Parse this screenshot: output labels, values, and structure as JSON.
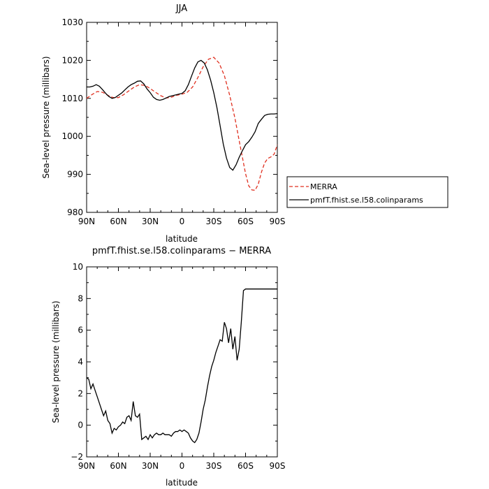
{
  "chart_data": [
    {
      "type": "line",
      "title": "JJA",
      "xlabel": "latitude",
      "ylabel": "Sea-level pressure (millibars)",
      "xlim": [
        90,
        -90
      ],
      "ylim": [
        980,
        1030
      ],
      "xticks": [
        {
          "value": 90,
          "label": "90N"
        },
        {
          "value": 60,
          "label": "60N"
        },
        {
          "value": 30,
          "label": "30N"
        },
        {
          "value": 0,
          "label": "0"
        },
        {
          "value": -30,
          "label": "30S"
        },
        {
          "value": -60,
          "label": "60S"
        },
        {
          "value": -90,
          "label": "90S"
        }
      ],
      "yticks": [
        980,
        990,
        1000,
        1010,
        1020,
        1030
      ],
      "grid": false,
      "legend_placement": "right",
      "series": [
        {
          "name": "MERRA",
          "color": "#e03020",
          "dash": true,
          "x": [
            90,
            85,
            80,
            75,
            70,
            65,
            60,
            55,
            50,
            45,
            40,
            35,
            30,
            25,
            20,
            15,
            10,
            5,
            0,
            -5,
            -10,
            -15,
            -20,
            -25,
            -30,
            -35,
            -40,
            -45,
            -50,
            -55,
            -60,
            -63,
            -66,
            -69,
            -72,
            -75,
            -78,
            -81,
            -84,
            -87,
            -90
          ],
          "y": [
            1010,
            1011,
            1011.8,
            1011.6,
            1010.8,
            1010.2,
            1010.2,
            1011,
            1012,
            1013,
            1013.6,
            1013.4,
            1012.6,
            1011.6,
            1010.7,
            1010.1,
            1010.3,
            1010.8,
            1011.1,
            1011.6,
            1013,
            1015.5,
            1018.3,
            1020.3,
            1020.8,
            1019.3,
            1016,
            1010.8,
            1004.8,
            997.4,
            990.2,
            987,
            985.9,
            985.8,
            987.4,
            990.6,
            993,
            994.2,
            994.6,
            995.3,
            997.8
          ]
        },
        {
          "name": "pmfT.fhist.se.l58.colinparams",
          "color": "#000000",
          "dash": false,
          "x": [
            90,
            87,
            84,
            81,
            78,
            75,
            72,
            69,
            66,
            63,
            60,
            57,
            54,
            51,
            48,
            45,
            42,
            39,
            36,
            33,
            30,
            27,
            24,
            21,
            18,
            15,
            12,
            9,
            6,
            3,
            0,
            -3,
            -6,
            -9,
            -12,
            -15,
            -18,
            -21,
            -24,
            -27,
            -30,
            -33,
            -36,
            -39,
            -42,
            -45,
            -48,
            -51,
            -54,
            -57,
            -60,
            -63,
            -66,
            -69,
            -72,
            -75,
            -78,
            -81,
            -84,
            -87,
            -90
          ],
          "y": [
            1013,
            1013,
            1013.2,
            1013.6,
            1013.2,
            1012.3,
            1011.3,
            1010.5,
            1010,
            1010.2,
            1010.8,
            1011.4,
            1012.2,
            1013,
            1013.6,
            1014,
            1014.5,
            1014.6,
            1013.8,
            1012.5,
            1011.5,
            1010.3,
            1009.7,
            1009.5,
            1009.7,
            1010.1,
            1010.5,
            1010.7,
            1010.9,
            1011.1,
            1011.3,
            1012,
            1013.6,
            1015.8,
            1018,
            1019.6,
            1020,
            1019.3,
            1017.5,
            1014.8,
            1011.5,
            1007.5,
            1002.8,
            998,
            994.3,
            991.8,
            991.1,
            992.5,
            994.5,
            996.2,
            997.8,
            998.6,
            999.8,
            1001.2,
            1003.4,
            1004.5,
            1005.5,
            1005.8,
            1005.9,
            1005.9,
            1006
          ]
        }
      ]
    },
    {
      "type": "line",
      "title": "pmfT.fhist.se.l58.colinparams − MERRA",
      "xlabel": "latitude",
      "ylabel": "Sea-level pressure (millibars)",
      "xlim": [
        90,
        -90
      ],
      "ylim": [
        -2,
        10
      ],
      "xticks": [
        {
          "value": 90,
          "label": "90N"
        },
        {
          "value": 60,
          "label": "60N"
        },
        {
          "value": 30,
          "label": "30N"
        },
        {
          "value": 0,
          "label": "0"
        },
        {
          "value": -30,
          "label": "30S"
        },
        {
          "value": -60,
          "label": "60S"
        },
        {
          "value": -90,
          "label": "90S"
        }
      ],
      "yticks": [
        -2,
        0,
        2,
        4,
        6,
        8,
        10
      ],
      "grid": false,
      "series": [
        {
          "color": "#000000",
          "dash": false,
          "x": [
            90,
            88,
            86,
            84,
            82,
            80,
            78,
            76,
            74,
            72,
            70,
            68,
            66,
            64,
            62,
            60,
            58,
            56,
            54,
            52,
            50,
            48,
            46,
            44,
            42,
            40,
            38,
            36,
            34,
            32,
            30,
            28,
            26,
            24,
            22,
            20,
            18,
            16,
            14,
            12,
            10,
            8,
            6,
            4,
            2,
            0,
            -2,
            -4,
            -6,
            -8,
            -10,
            -12,
            -14,
            -16,
            -18,
            -20,
            -22,
            -24,
            -26,
            -28,
            -30,
            -32,
            -34,
            -36,
            -38,
            -40,
            -42,
            -44,
            -46,
            -48,
            -50,
            -52,
            -54,
            -56,
            -58,
            -60,
            -62,
            -64,
            -66,
            -68,
            -70,
            -72,
            -74,
            -76,
            -78,
            -80,
            -82,
            -84,
            -86,
            -88,
            -90
          ],
          "y": [
            3,
            2.9,
            2.3,
            2.6,
            2.2,
            1.8,
            1.4,
            1,
            0.6,
            0.9,
            0.3,
            0.1,
            -0.5,
            -0.2,
            -0.3,
            -0.1,
            0,
            0.2,
            0.1,
            0.5,
            0.6,
            0.3,
            1.5,
            0.6,
            0.5,
            0.7,
            -0.9,
            -0.8,
            -0.7,
            -0.9,
            -0.6,
            -0.8,
            -0.6,
            -0.5,
            -0.6,
            -0.6,
            -0.5,
            -0.6,
            -0.6,
            -0.6,
            -0.7,
            -0.5,
            -0.4,
            -0.4,
            -0.3,
            -0.4,
            -0.3,
            -0.4,
            -0.5,
            -0.8,
            -1,
            -1.1,
            -0.9,
            -0.5,
            0.2,
            1,
            1.6,
            2.4,
            3.1,
            3.7,
            4.1,
            4.6,
            5,
            5.4,
            5.3,
            6.5,
            6.1,
            5.2,
            6.1,
            4.8,
            5.6,
            4.1,
            4.8,
            6.5,
            8.5,
            8.6,
            8.6,
            8.6,
            8.6,
            8.6,
            8.6,
            8.6,
            8.6,
            8.6,
            8.6,
            8.6,
            8.6,
            8.6,
            8.6,
            8.6,
            8.6
          ]
        }
      ]
    }
  ]
}
